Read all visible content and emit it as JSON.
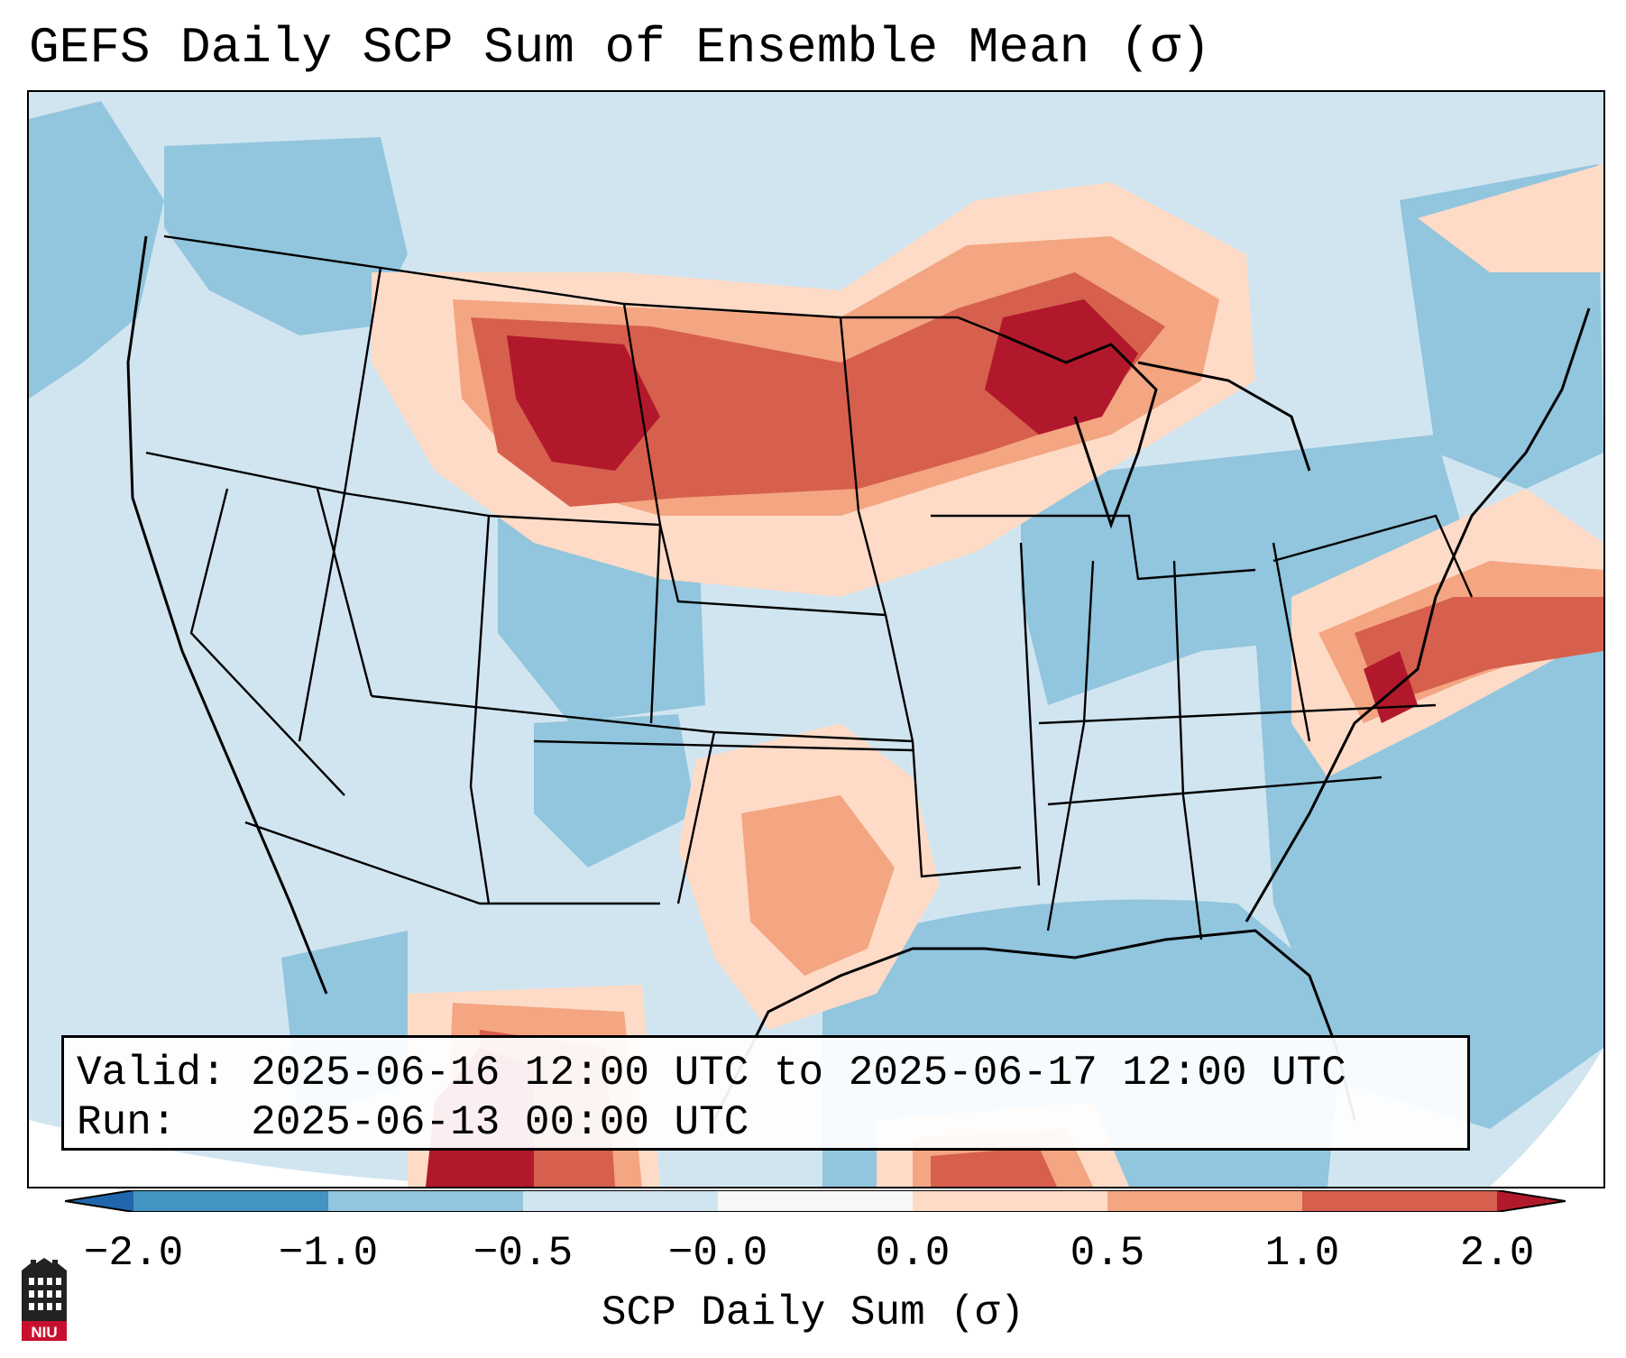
{
  "title": "GEFS Daily SCP Sum of Ensemble Mean (σ)",
  "info": {
    "valid_label": "Valid:",
    "valid_text": "2025-06-16 12:00 UTC to 2025-06-17 12:00 UTC",
    "run_label": "Run:",
    "run_text": "2025-06-13 00:00 UTC"
  },
  "colorbar": {
    "label": "SCP Daily Sum (σ)",
    "ticks": [
      "−2.0",
      "−1.0",
      "−0.5",
      "−0.0",
      "0.0",
      "0.5",
      "1.0",
      "2.0"
    ],
    "bins": [
      {
        "range": "< -2.0",
        "color": "#2166ac"
      },
      {
        "range": "-2.0 to -1.0",
        "color": "#4393c3"
      },
      {
        "range": "-1.0 to -0.5",
        "color": "#92c5de"
      },
      {
        "range": "-0.5 to -0.0",
        "color": "#d1e5f0"
      },
      {
        "range": "-0.0 to 0.0",
        "color": "#f7f7f7"
      },
      {
        "range": "0.0 to 0.5",
        "color": "#fddbc7"
      },
      {
        "range": "0.5 to 1.0",
        "color": "#f4a582"
      },
      {
        "range": "1.0 to 2.0",
        "color": "#d6604d"
      },
      {
        "range": "> 2.0",
        "color": "#b2182b"
      }
    ]
  },
  "map": {
    "region": "Contiguous United States",
    "field": "SCP daily sum anomaly (σ)",
    "notable_regions": [
      {
        "name": "Northern Plains (MT/WY/SD/ND/NE)",
        "category": "> 2.0"
      },
      {
        "name": "Upper Midwest / Wisconsin / Michigan",
        "category": "> 2.0"
      },
      {
        "name": "Virginia / Mid-Atlantic coast and offshore",
        "category": "1.0 to 2.0"
      },
      {
        "name": "Texas / Oklahoma",
        "category": "0.5 to 1.0"
      },
      {
        "name": "Northern Mexico",
        "category": "> 2.0"
      },
      {
        "name": "Gulf of Mexico / Atlantic",
        "category": "-1.0 to -0.5"
      }
    ]
  },
  "logo": {
    "text": "NIU",
    "name": "Northern Illinois University"
  }
}
